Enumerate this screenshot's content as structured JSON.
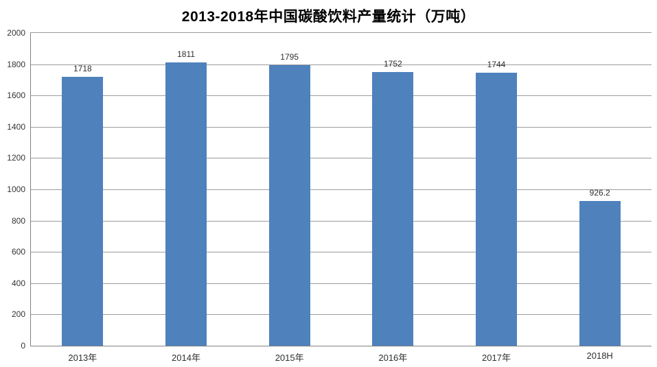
{
  "chart_data": {
    "type": "bar",
    "title": "2013-2018年中国碳酸饮料产量统计（万吨）",
    "xlabel": "",
    "ylabel": "",
    "categories": [
      "2013年",
      "2014年",
      "2015年",
      "2016年",
      "2017年",
      "2018H"
    ],
    "values": [
      1718,
      1811,
      1795,
      1752,
      1744,
      926.2
    ],
    "value_labels": [
      "1718",
      "1811",
      "1795",
      "1752",
      "1744",
      "926.2"
    ],
    "ylim": [
      0,
      2000
    ],
    "yticks": [
      0,
      200,
      400,
      600,
      800,
      1000,
      1200,
      1400,
      1600,
      1800,
      2000
    ],
    "grid": true,
    "legend_position": "none",
    "bar_color": "#4F81BD",
    "gridline_color": "#9b9b9b",
    "axis_color": "#808080",
    "title_color": "#000000",
    "label_color": "#2e2e2e",
    "background_color": "#ffffff"
  }
}
